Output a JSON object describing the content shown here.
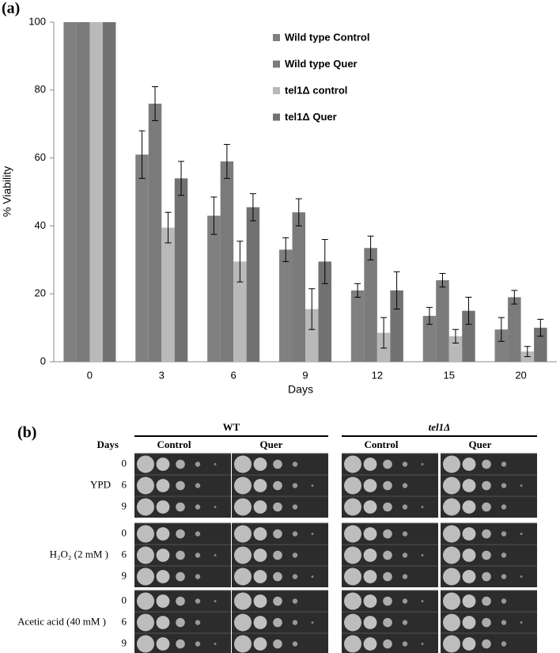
{
  "chart_data": {
    "type": "bar",
    "x_label": "Days",
    "y_label": "% Viability",
    "categories": [
      "0",
      "3",
      "6",
      "9",
      "12",
      "15",
      "20"
    ],
    "series": [
      {
        "name": "Wild type Control",
        "color": "#808080",
        "values": [
          100,
          61,
          43,
          33,
          21,
          13.5,
          9.5
        ],
        "errors": [
          null,
          7,
          5.5,
          3.5,
          2,
          2.5,
          3.5
        ]
      },
      {
        "name": "Wild type Quer",
        "color": "#7b7b7b",
        "values": [
          100,
          76,
          59,
          44,
          33.5,
          24,
          19
        ],
        "errors": [
          null,
          5,
          5,
          4,
          3.5,
          2,
          2
        ]
      },
      {
        "name": "tel1Δ control",
        "color": "#b9b9b9",
        "values": [
          100,
          39.5,
          29.5,
          15.5,
          8.5,
          7.5,
          3
        ],
        "errors": [
          null,
          4.5,
          6,
          6,
          4.5,
          2,
          1.5
        ]
      },
      {
        "name": "tel1Δ Quer",
        "color": "#727272",
        "values": [
          100,
          54,
          45.5,
          29.5,
          21,
          15,
          10
        ],
        "errors": [
          null,
          5,
          4,
          6.5,
          5.5,
          4,
          2.5
        ]
      }
    ],
    "ylim": [
      0,
      100
    ],
    "yticks": [
      0,
      20,
      40,
      60,
      80,
      100
    ],
    "legend": "top-right"
  },
  "panel_labels": [
    "(a)",
    "(b)"
  ],
  "spot_assay": {
    "days_label": "Days",
    "groups": [
      {
        "label": "WT",
        "columns": [
          "Control",
          "Quer"
        ]
      },
      {
        "label": "tel1Δ",
        "columns": [
          "Control",
          "Quer"
        ]
      }
    ],
    "treatments": [
      {
        "label": "YPD",
        "days": [
          "0",
          "6",
          "9"
        ]
      },
      {
        "label": "H₂O₂ (2 mM )",
        "days": [
          "0",
          "6",
          "9"
        ]
      },
      {
        "label": "Acetic acid (40 mM )",
        "days": [
          "0",
          "6",
          "9"
        ]
      }
    ]
  }
}
